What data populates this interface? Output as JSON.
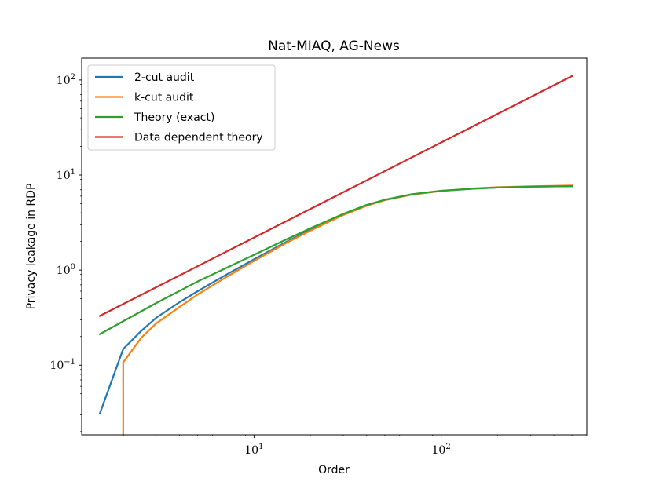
{
  "chart_data": {
    "type": "line",
    "title": "Nat-MIAQ, AG-News",
    "xlabel": "Order",
    "ylabel": "Privacy leakage in RDP",
    "xscale": "log",
    "yscale": "log",
    "xlim": [
      1.2,
      600
    ],
    "ylim": [
      0.0185,
      170
    ],
    "x_major_ticks": [
      {
        "value": 10,
        "label": "10",
        "exp": "1"
      },
      {
        "value": 100,
        "label": "10",
        "exp": "2"
      }
    ],
    "y_major_ticks": [
      {
        "value": 0.1,
        "label": "10",
        "exp": "−1"
      },
      {
        "value": 1,
        "label": "10",
        "exp": "0"
      },
      {
        "value": 10,
        "label": "10",
        "exp": "1"
      },
      {
        "value": 100,
        "label": "10",
        "exp": "2"
      }
    ],
    "legend_position": "top-left",
    "grid": false,
    "series": [
      {
        "name": "2-cut audit",
        "color": "#1f77b4",
        "x": [
          1.5,
          2,
          2.5,
          3,
          4,
          5,
          7,
          10,
          15,
          20,
          30,
          40,
          50,
          70,
          100,
          150,
          200,
          300,
          500
        ],
        "y": [
          0.031,
          0.148,
          0.23,
          0.315,
          0.46,
          0.6,
          0.88,
          1.3,
          2.0,
          2.65,
          3.85,
          4.8,
          5.45,
          6.25,
          6.8,
          7.2,
          7.4,
          7.55,
          7.65
        ]
      },
      {
        "name": "k-cut audit",
        "color": "#ff7f0e",
        "x": [
          2,
          2,
          2.5,
          3,
          4,
          5,
          7,
          10,
          15,
          20,
          30,
          40,
          50,
          70,
          100,
          150,
          200,
          300,
          500
        ],
        "y": [
          0.0185,
          0.107,
          0.195,
          0.275,
          0.41,
          0.555,
          0.83,
          1.25,
          1.95,
          2.6,
          3.8,
          4.75,
          5.45,
          6.25,
          6.8,
          7.25,
          7.45,
          7.62,
          7.75
        ]
      },
      {
        "name": "Theory (exact)",
        "color": "#2ca02c",
        "x": [
          1.5,
          2,
          3,
          5,
          7,
          10,
          15,
          20,
          30,
          40,
          50,
          70,
          100,
          150,
          200,
          300,
          500
        ],
        "y": [
          0.212,
          0.29,
          0.45,
          0.76,
          1.04,
          1.45,
          2.12,
          2.75,
          3.9,
          4.85,
          5.5,
          6.3,
          6.85,
          7.2,
          7.4,
          7.55,
          7.65
        ]
      },
      {
        "name": "Data dependent theory",
        "color": "#d62728",
        "x": [
          1.5,
          500
        ],
        "y": [
          0.33,
          110
        ]
      }
    ]
  }
}
